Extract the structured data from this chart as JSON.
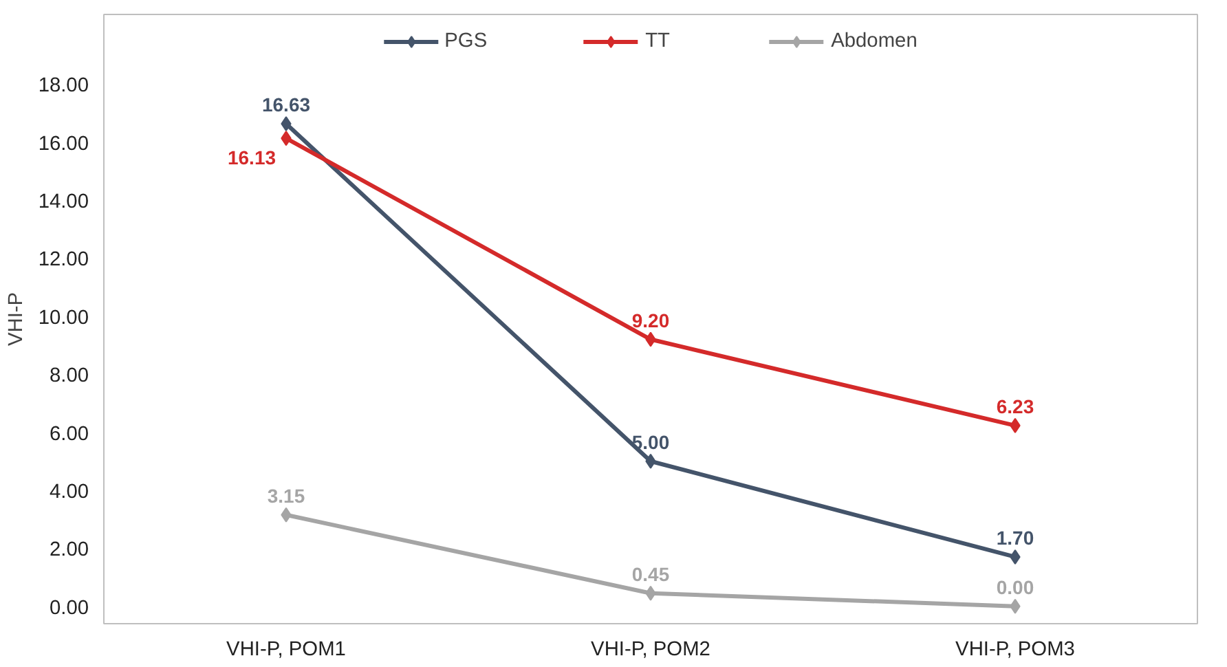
{
  "chart_data": {
    "type": "line",
    "ylabel": "VHI-P",
    "categories": [
      "VHI-P, POM1",
      "VHI-P, POM2",
      "VHI-P, POM3"
    ],
    "series": [
      {
        "name": "PGS",
        "color": "#44546a",
        "values": [
          16.63,
          5.0,
          1.7
        ],
        "value_labels": [
          "16.63",
          "5.00",
          "1.70"
        ]
      },
      {
        "name": "TT",
        "color": "#d42a2a",
        "values": [
          16.13,
          9.2,
          6.23
        ],
        "value_labels": [
          "16.13",
          "9.20",
          "6.23"
        ]
      },
      {
        "name": "Abdomen",
        "color": "#a5a5a5",
        "values": [
          3.15,
          0.45,
          0.0
        ],
        "value_labels": [
          "3.15",
          "0.45",
          "0.00"
        ]
      }
    ],
    "ylim": [
      -0.6,
      20.4
    ],
    "yticks": [
      {
        "value": 0,
        "label": "0.00"
      },
      {
        "value": 2,
        "label": "2.00"
      },
      {
        "value": 4,
        "label": "4.00"
      },
      {
        "value": 6,
        "label": "6.00"
      },
      {
        "value": 8,
        "label": "8.00"
      },
      {
        "value": 10,
        "label": "10.00"
      },
      {
        "value": 12,
        "label": "12.00"
      },
      {
        "value": 14,
        "label": "14.00"
      },
      {
        "value": 16,
        "label": "16.00"
      },
      {
        "value": 18,
        "label": "18.00"
      }
    ],
    "grid": false,
    "legend": "top",
    "marker": "diamond",
    "line_style": "solid"
  }
}
